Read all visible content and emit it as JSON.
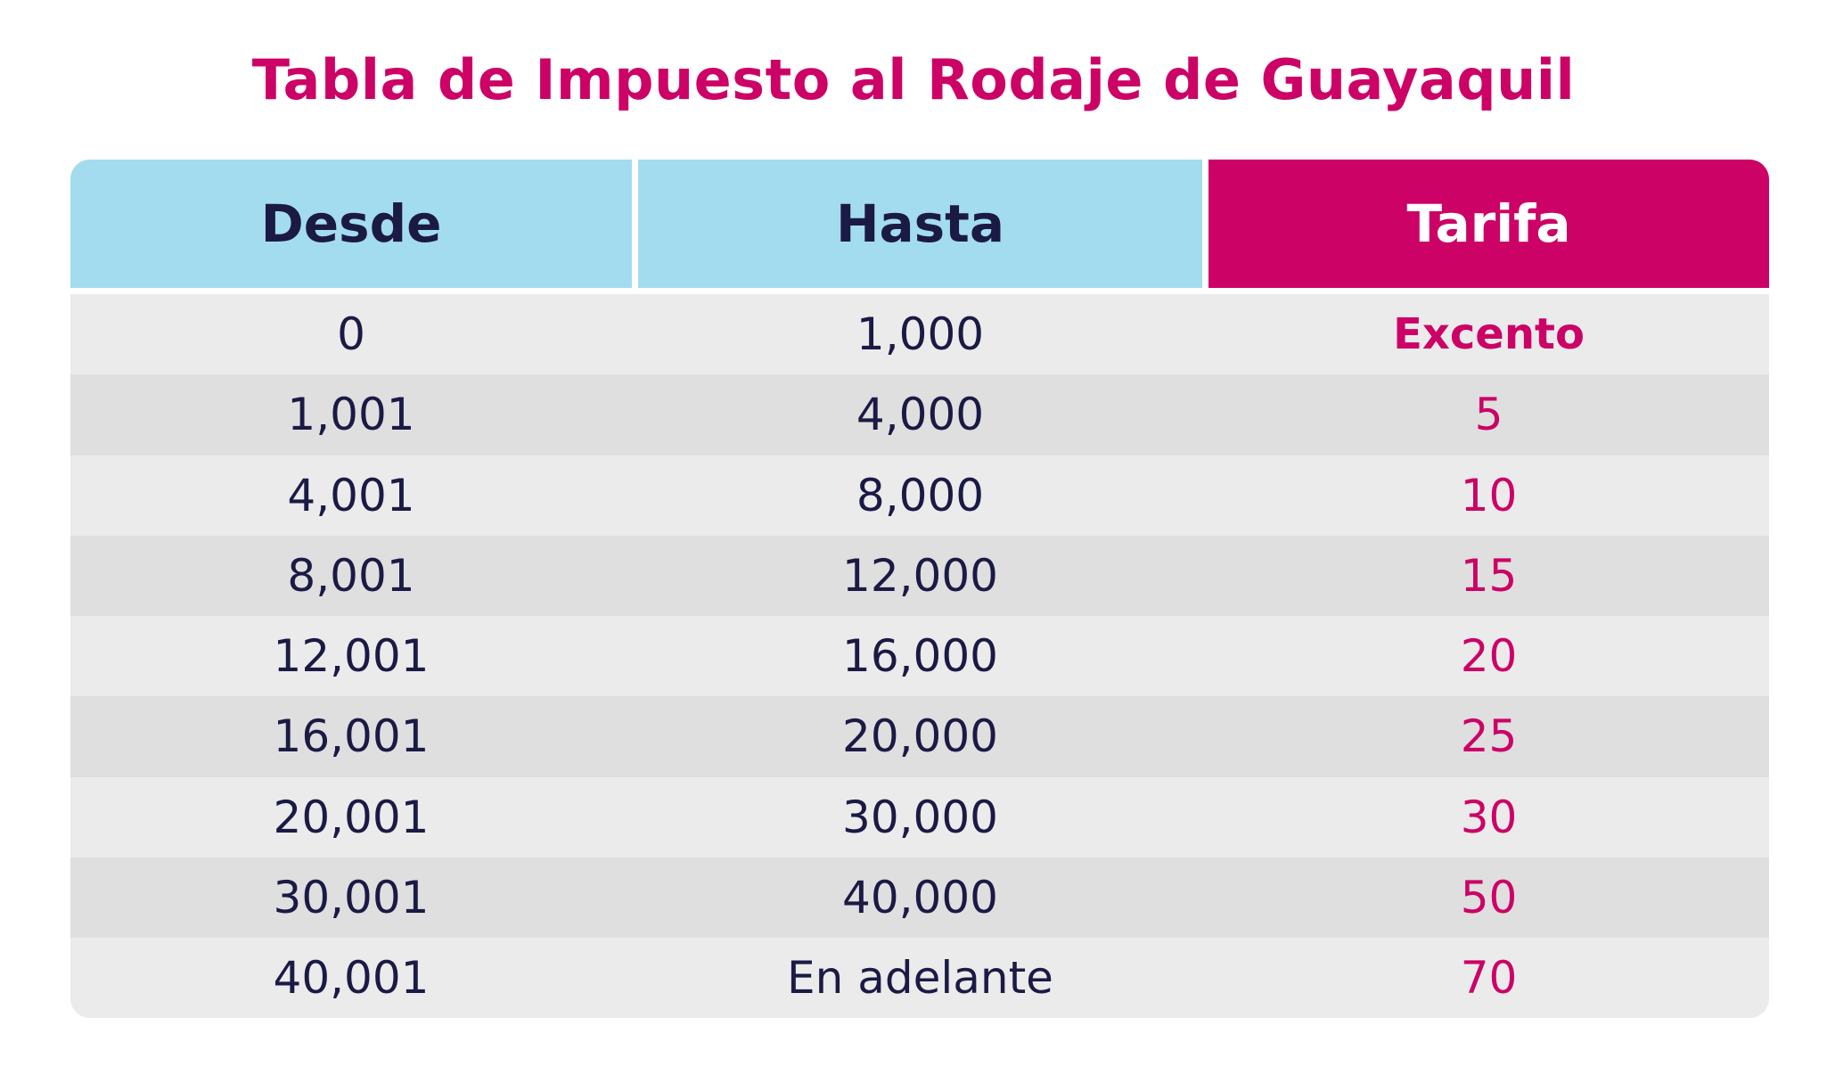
{
  "title": "Tabla de Impuesto al Rodaje de Guayaquil",
  "colors": {
    "accent": "#cc0266",
    "header_light": "#a3dcee",
    "dark_text": "#1b1a45",
    "row_light": "#ebebeb",
    "row_dark": "#dfdfdf"
  },
  "table": {
    "headers": [
      "Desde",
      "Hasta",
      "Tarifa"
    ],
    "rows": [
      {
        "desde": "0",
        "hasta": "1,000",
        "tarifa": "Excento"
      },
      {
        "desde": "1,001",
        "hasta": "4,000",
        "tarifa": "5"
      },
      {
        "desde": "4,001",
        "hasta": "8,000",
        "tarifa": "10"
      },
      {
        "desde": "8,001",
        "hasta": "12,000",
        "tarifa": "15"
      },
      {
        "desde": "12,001",
        "hasta": "16,000",
        "tarifa": "20"
      },
      {
        "desde": "16,001",
        "hasta": "20,000",
        "tarifa": "25"
      },
      {
        "desde": "20,001",
        "hasta": "30,000",
        "tarifa": "30"
      },
      {
        "desde": "30,001",
        "hasta": "40,000",
        "tarifa": "50"
      },
      {
        "desde": "40,001",
        "hasta": "En adelante",
        "tarifa": "70"
      }
    ]
  }
}
